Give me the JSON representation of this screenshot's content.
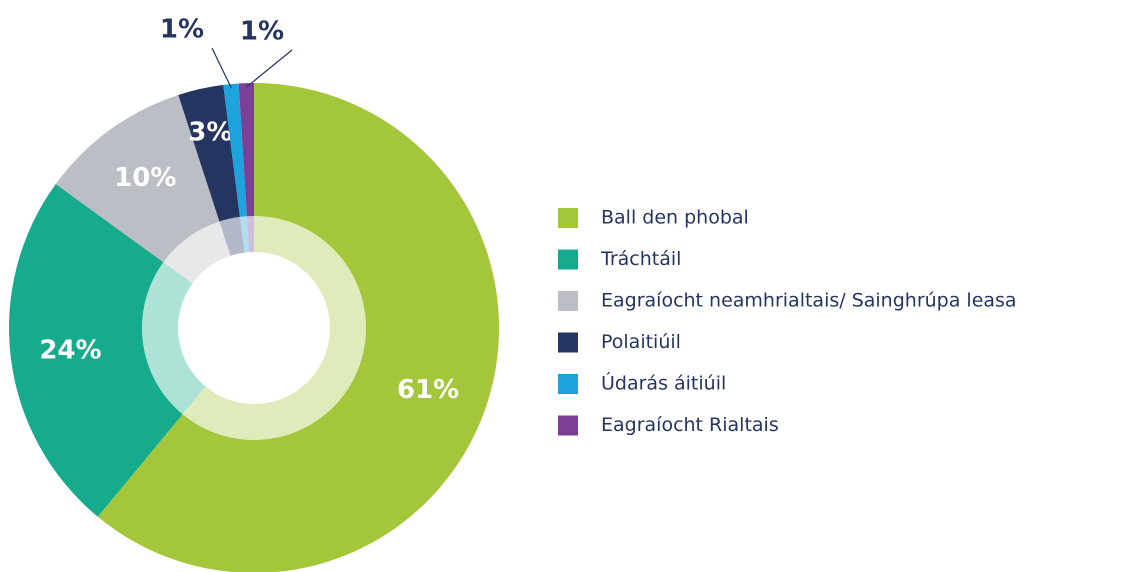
{
  "chart_data": {
    "type": "pie",
    "donut": true,
    "categories": [
      "Ball den phobal",
      "Tráchtáil",
      "Eagraíocht neamhrialtais/ Sainghrúpa leasa",
      "Polaitiúil",
      "Údarás áitiúil",
      "Eagraíocht Rialtais"
    ],
    "values": [
      61,
      24,
      10,
      3,
      1,
      1
    ],
    "value_labels": [
      "61%",
      "24%",
      "10%",
      "3%",
      "1%",
      "1%"
    ],
    "colors": [
      "#a3c63b",
      "#17ab8d",
      "#bcbec6",
      "#253561",
      "#1ea4dc",
      "#7b3f98"
    ],
    "legend": "right"
  }
}
